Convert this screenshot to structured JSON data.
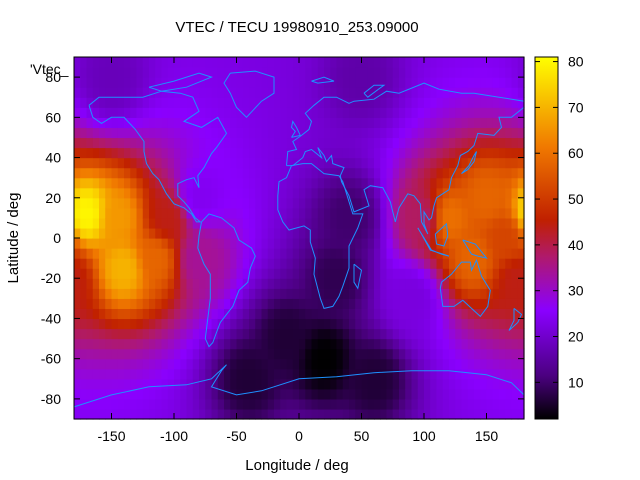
{
  "chart_data": {
    "type": "heatmap",
    "title": "VTEC / TECU 19980910_253.09000",
    "xlabel": "Longitude / deg",
    "ylabel": "Latitude / deg",
    "key_label": "'Vtec_",
    "xlim": [
      -180,
      180
    ],
    "ylim": [
      -90,
      90
    ],
    "x_ticks": [
      -150,
      -100,
      -50,
      0,
      50,
      100,
      150
    ],
    "y_ticks": [
      -80,
      -60,
      -40,
      -20,
      0,
      20,
      40,
      60,
      80
    ],
    "colorbar": {
      "min": 2,
      "max": 81,
      "ticks": [
        10,
        20,
        30,
        40,
        50,
        60,
        70,
        80
      ]
    },
    "grid": false,
    "colormap": "black-purple-red-orange-yellow",
    "colors": {
      "continent_outline": "#1e90ff",
      "axes": "#000000"
    },
    "features": [
      {
        "lon": -170,
        "lat": 12,
        "value": 80
      },
      {
        "lon": -145,
        "lat": 10,
        "value": 66
      },
      {
        "lon": -140,
        "lat": -15,
        "value": 70
      },
      {
        "lon": -115,
        "lat": -10,
        "value": 58
      },
      {
        "lon": -105,
        "lat": 10,
        "value": 44
      },
      {
        "lon": -80,
        "lat": -10,
        "value": 34
      },
      {
        "lon": -80,
        "lat": 20,
        "value": 24
      },
      {
        "lon": 120,
        "lat": 10,
        "value": 60
      },
      {
        "lon": 100,
        "lat": 10,
        "value": 38
      },
      {
        "lon": 150,
        "lat": 20,
        "value": 58
      },
      {
        "lon": 140,
        "lat": -10,
        "value": 58
      },
      {
        "lon": 165,
        "lat": 0,
        "value": 52
      },
      {
        "lon": 175,
        "lat": -20,
        "value": 44
      },
      {
        "lon": 90,
        "lat": -30,
        "value": 22
      },
      {
        "lon": 20,
        "lat": -60,
        "value": 2
      },
      {
        "lon": -10,
        "lat": -50,
        "value": 6
      },
      {
        "lon": 30,
        "lat": -20,
        "value": 8
      },
      {
        "lon": 40,
        "lat": 10,
        "value": 10
      },
      {
        "lon": -40,
        "lat": -70,
        "value": 6
      },
      {
        "lon": 60,
        "lat": -70,
        "value": 6
      },
      {
        "lon": -150,
        "lat": 80,
        "value": 18
      },
      {
        "lon": 50,
        "lat": 80,
        "value": 16
      }
    ],
    "base_value": 22
  }
}
